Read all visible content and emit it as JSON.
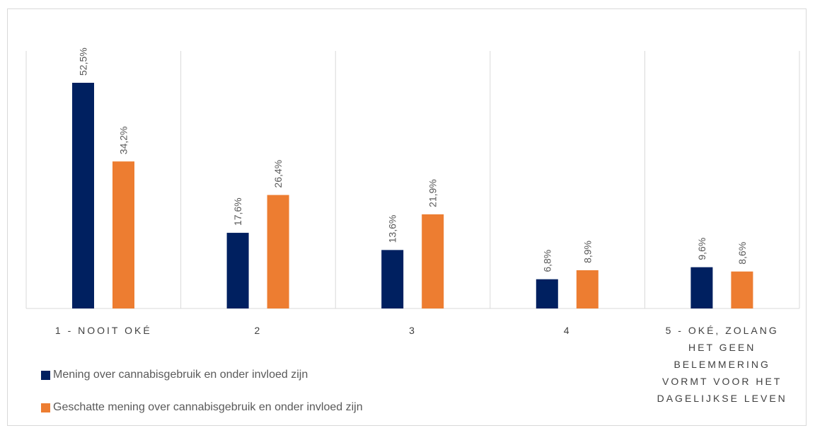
{
  "chart_data": {
    "type": "bar",
    "categories": [
      "1 - NOOIT OKÉ",
      "2",
      "3",
      "4",
      "5 - OKÉ, ZOLANG HET GEEN BELEMMERING VORMT VOOR HET DAGELIJKSE LEVEN"
    ],
    "category_lines": [
      [
        "1 - NOOIT OKÉ"
      ],
      [
        "2"
      ],
      [
        "3"
      ],
      [
        "4"
      ],
      [
        "5 - OKÉ, ZOLANG",
        "HET GEEN",
        "BELEMMERING",
        "VORMT VOOR HET",
        "DAGELIJKSE LEVEN"
      ]
    ],
    "series": [
      {
        "name": "Mening over cannabisgebruik en onder invloed zijn",
        "color": "#002060",
        "values": [
          52.5,
          17.6,
          13.6,
          6.8,
          9.6
        ],
        "labels": [
          "52,5%",
          "17,6%",
          "13,6%",
          "6,8%",
          "9,6%"
        ]
      },
      {
        "name": "Geschatte mening over cannabisgebruik en onder invloed zijn",
        "color": "#ED7D31",
        "values": [
          34.2,
          26.4,
          21.9,
          8.9,
          8.6
        ],
        "labels": [
          "34,2%",
          "26,4%",
          "21,9%",
          "8,9%",
          "8,6%"
        ]
      }
    ],
    "ylim": [
      0,
      52.5
    ],
    "grid": "vertical category separators",
    "legend_position": "bottom-left"
  }
}
